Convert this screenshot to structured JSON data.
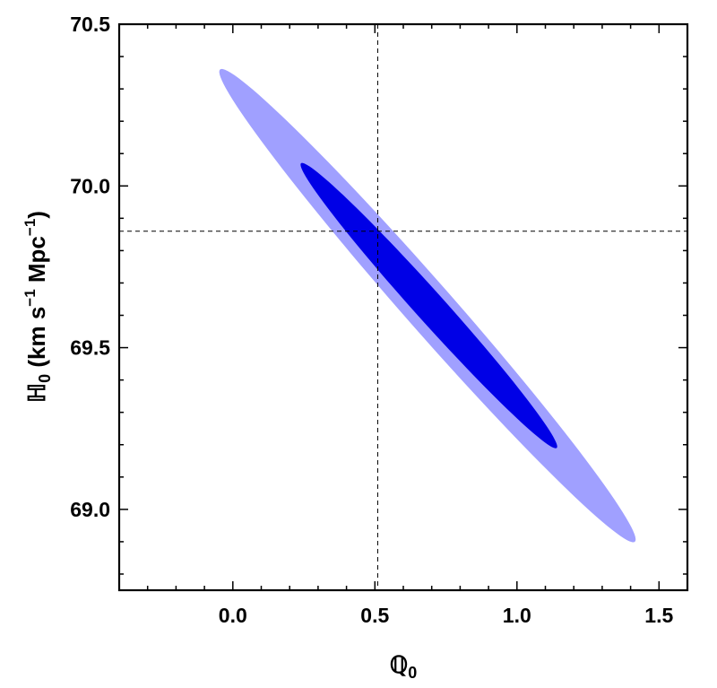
{
  "chart_data": {
    "type": "contour",
    "xlabel": {
      "main": "ℚ",
      "sub": "0"
    },
    "ylabel": {
      "main": "ℍ",
      "sub": "0",
      "paren_open": " (km s",
      "sup1": "−1",
      "mid": " Mpc",
      "sup2": "−1",
      "paren_close": ")"
    },
    "xlim": [
      -0.4,
      1.6
    ],
    "ylim": [
      68.75,
      70.5
    ],
    "xticks": [
      0.0,
      0.5,
      1.0,
      1.5
    ],
    "xtick_labels": [
      "0.0",
      "0.5",
      "1.0",
      "1.5"
    ],
    "yticks": [
      69.0,
      69.5,
      70.0,
      70.5
    ],
    "ytick_labels": [
      "69.0",
      "69.5",
      "70.0",
      "70.5"
    ],
    "x_minor_step": 0.1,
    "y_minor_step": 0.1,
    "best_fit": {
      "x": 0.51,
      "y": 69.86
    },
    "regions": [
      {
        "level": "2-sigma",
        "color": "#a0a0ff",
        "center": [
          0.685,
          69.63
        ],
        "endpoints": [
          [
            -0.045,
            70.36
          ],
          [
            1.415,
            68.9
          ]
        ],
        "half_width": 0.085
      },
      {
        "level": "1-sigma",
        "color": "#0000e6",
        "center": [
          0.69,
          69.63
        ],
        "endpoints": [
          [
            0.24,
            70.07
          ],
          [
            1.14,
            69.19
          ]
        ],
        "half_width": 0.052
      }
    ],
    "grid": false,
    "frame": true
  }
}
